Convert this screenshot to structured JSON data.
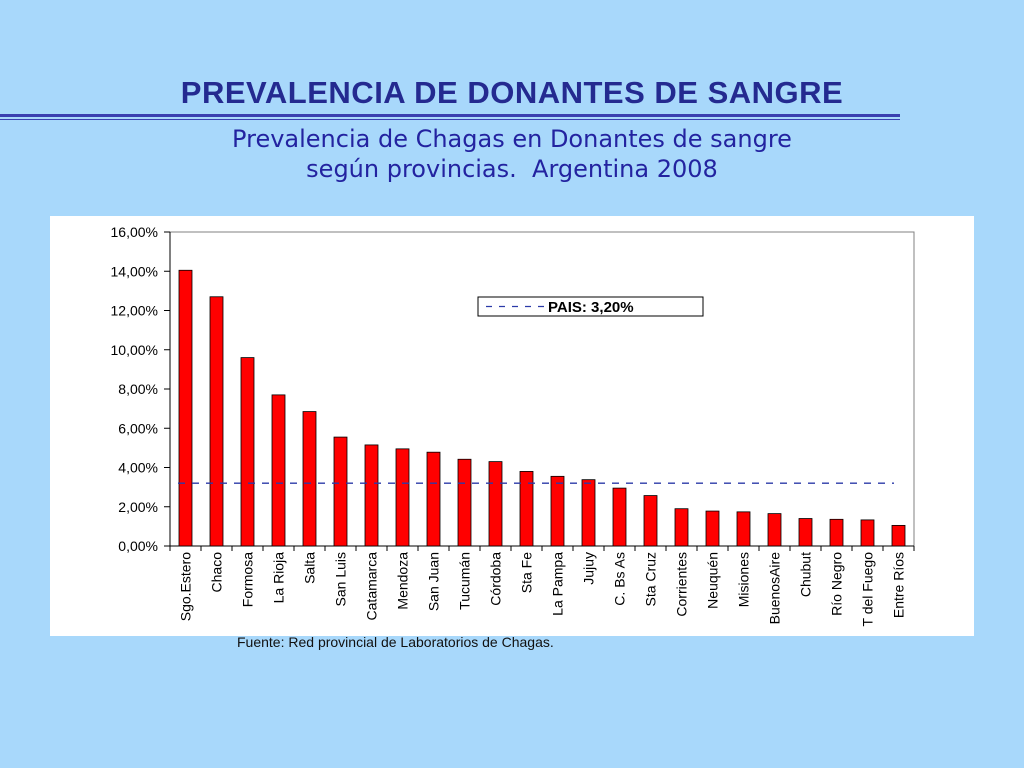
{
  "slide": {
    "title": "PREVALENCIA DE DONANTES DE SANGRE",
    "subtitle_line1": "Prevalencia de Chagas en Donantes de sangre",
    "subtitle_line2": "según provincias.  Argentina 2008",
    "source": "Fuente: Red provincial de Laboratorios de Chagas."
  },
  "colors": {
    "background": "#a8d8fb",
    "title": "#242a90",
    "subtitle": "#2323a0",
    "bar_fill": "#ff0000",
    "bar_stroke": "#000000",
    "reference_line": "#2b3aa8"
  },
  "chart_data": {
    "type": "bar",
    "title": "",
    "xlabel": "",
    "ylabel": "",
    "ylim": [
      0,
      16
    ],
    "y_ticks": [
      "0,00%",
      "2,00%",
      "4,00%",
      "6,00%",
      "8,00%",
      "10,00%",
      "12,00%",
      "14,00%",
      "16,00%"
    ],
    "grid": false,
    "categories": [
      "Sgo.Estero",
      "Chaco",
      "Formosa",
      "La Rioja",
      "Salta",
      "San Luis",
      "Catamarca",
      "Mendoza",
      "San Juan",
      "Tucumán",
      "Córdoba",
      "Sta Fe",
      "La Pampa",
      "Jujuy",
      "C. Bs As",
      "Sta Cruz",
      "Corrientes",
      "Neuquén",
      "Misiones",
      "BuenosAire",
      "Chubut",
      "Río Negro",
      "T del Fuego",
      "Entre Ríos"
    ],
    "values": [
      14.05,
      12.7,
      9.6,
      7.7,
      6.85,
      5.55,
      5.15,
      4.95,
      4.78,
      4.42,
      4.3,
      3.8,
      3.55,
      3.38,
      2.95,
      2.57,
      1.9,
      1.78,
      1.74,
      1.65,
      1.4,
      1.36,
      1.33,
      1.05
    ],
    "reference_line": {
      "value": 3.2,
      "label": "PAIS: 3,20%",
      "style": "dashed"
    },
    "legend_placement": "top-center"
  }
}
